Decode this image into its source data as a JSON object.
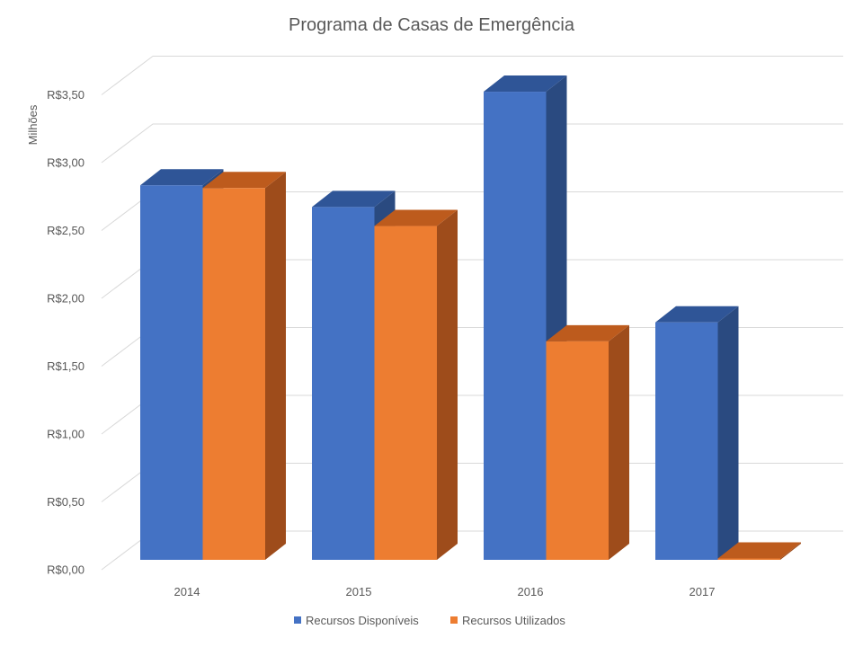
{
  "chart_data": {
    "type": "bar",
    "projection": "3d",
    "title": "Programa de Casas de Emergência",
    "xlabel": "",
    "ylabel": "Milhões",
    "categories": [
      "2014",
      "2015",
      "2016",
      "2017"
    ],
    "series": [
      {
        "name": "Recursos Disponíveis",
        "values": [
          2.76,
          2.6,
          3.45,
          1.75
        ],
        "colors": {
          "front": "#4472C4",
          "top": "#2F5597",
          "side": "#2A4A80"
        }
      },
      {
        "name": "Recursos Utilizados",
        "values": [
          2.74,
          2.46,
          1.61,
          0.01
        ],
        "colors": {
          "front": "#ED7D31",
          "top": "#BD5B1D",
          "side": "#9E4C1B"
        }
      }
    ],
    "ylim": [
      0,
      3.5
    ],
    "yticks": [
      0,
      0.5,
      1,
      1.5,
      2,
      2.5,
      3,
      3.5
    ],
    "ytick_labels": [
      "R$0,00",
      "R$0,50",
      "R$1,00",
      "R$1,50",
      "R$2,00",
      "R$2,50",
      "R$3,00",
      "R$3,50"
    ],
    "grid": true,
    "legend": "bottom"
  },
  "colors": {
    "background": "#FFFFFF",
    "text": "#595959",
    "grid": "#D9D9D9"
  }
}
